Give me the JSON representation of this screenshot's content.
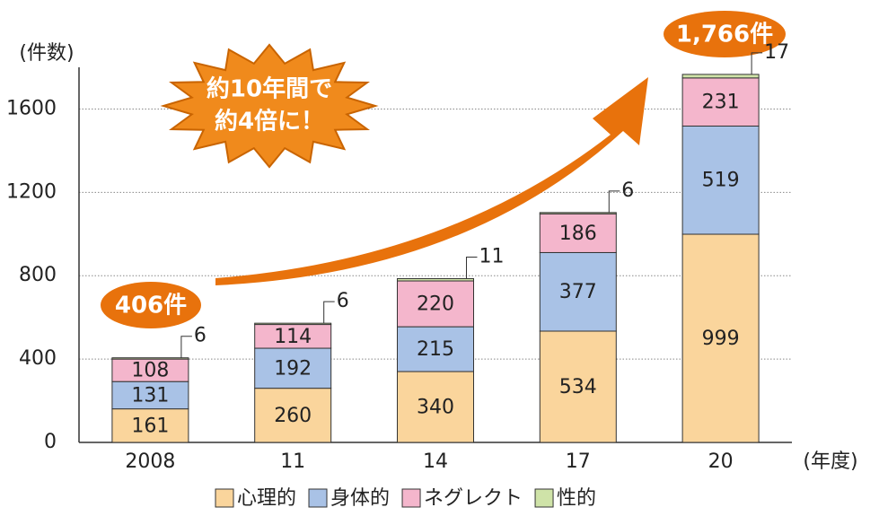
{
  "chart_data": {
    "type": "stacked-bar",
    "y_label": "(件数)",
    "x_label": "(年度)",
    "categories": [
      "2008",
      "11",
      "14",
      "17",
      "20"
    ],
    "series": [
      {
        "name": "心理的",
        "color": "#fad59c",
        "values": [
          161,
          260,
          340,
          534,
          999
        ]
      },
      {
        "name": "身体的",
        "color": "#a9c2e6",
        "values": [
          131,
          192,
          215,
          377,
          519
        ]
      },
      {
        "name": "ネグレクト",
        "color": "#f4b6cc",
        "values": [
          108,
          114,
          220,
          186,
          231
        ]
      },
      {
        "name": "性的",
        "color": "#cfe3a8",
        "values": [
          6,
          6,
          11,
          6,
          17
        ]
      }
    ],
    "ylim": [
      0,
      1800
    ],
    "yticks": [
      0,
      400,
      800,
      1200,
      1600
    ],
    "grid": true,
    "annotations": [
      "406件",
      "1,766件",
      "約10年間で",
      "約4倍に！"
    ]
  }
}
